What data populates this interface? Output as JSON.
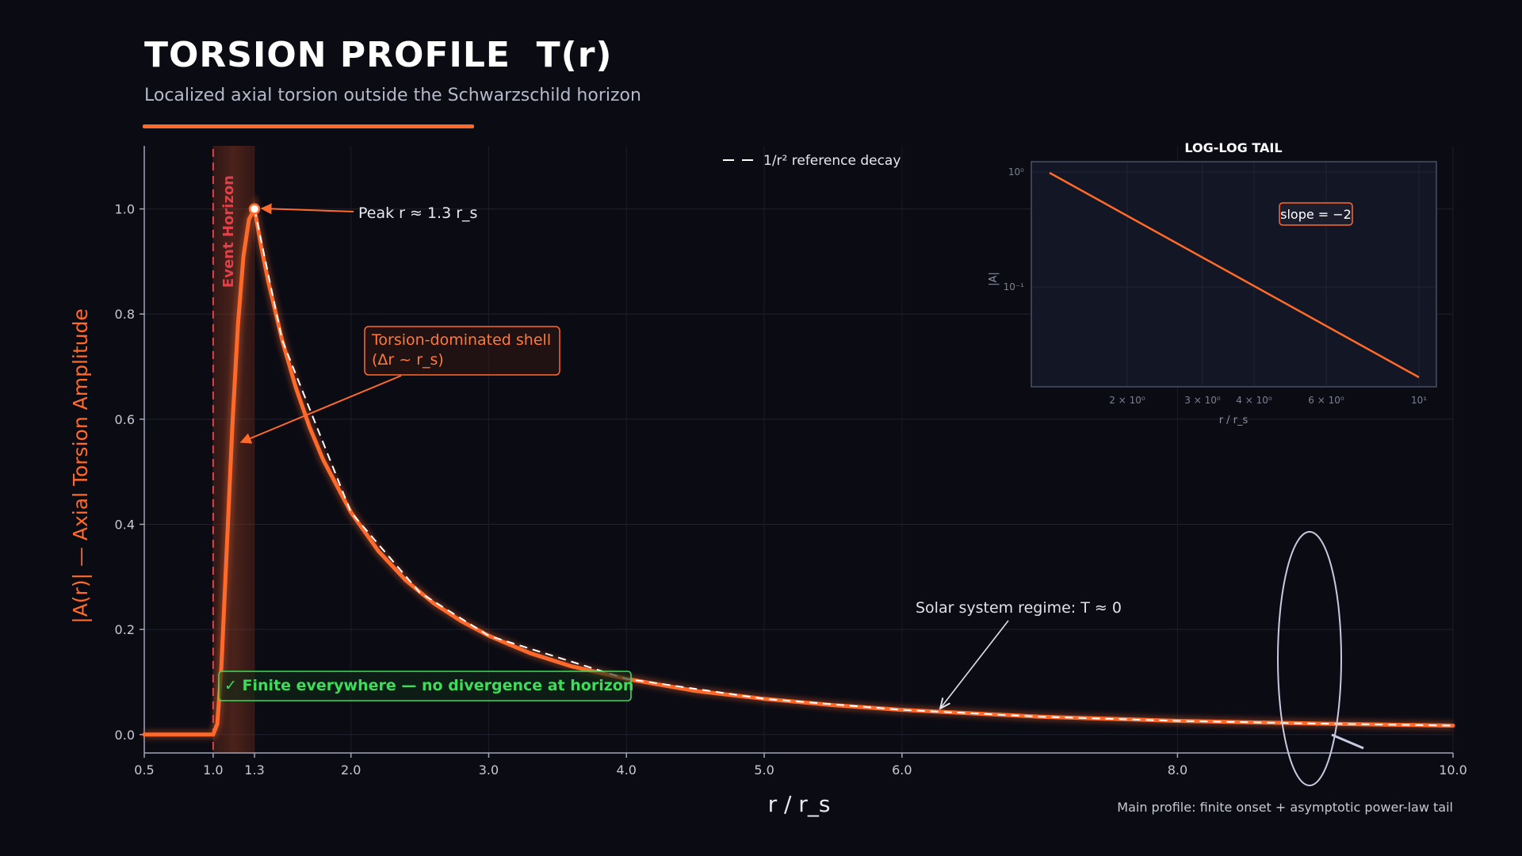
{
  "header": {
    "title": "TORSION PROFILE  T(r)",
    "subtitle": "Localized axial torsion outside the Schwarzschild horizon"
  },
  "colors": {
    "background": "#0b0b14",
    "accent": "#ff6a2a",
    "reference": "#ffffff",
    "horizon": "#e0404a",
    "finite_note": "#3ddc5a",
    "annotation": "#e0e2ea"
  },
  "chart_data": [
    {
      "type": "line",
      "title": "",
      "xlabel": "r / r_s",
      "ylabel": "|A(r)|  — Axial Torsion Amplitude",
      "xlim": [
        0.5,
        10.0
      ],
      "ylim": [
        -0.035,
        1.12
      ],
      "x_ticks": [
        0.5,
        1.0,
        1.3,
        2.0,
        3.0,
        4.0,
        5.0,
        6.0,
        8.0,
        10.0
      ],
      "x_tick_labels": [
        "0.5",
        "1.0",
        "1.3",
        "2.0",
        "3.0",
        "4.0",
        "5.0",
        "6.0",
        "8.0",
        "10.0"
      ],
      "y_ticks": [
        0.0,
        0.2,
        0.4,
        0.6,
        0.8,
        1.0
      ],
      "y_tick_labels": [
        "0.0",
        "0.2",
        "0.4",
        "0.6",
        "0.8",
        "1.0"
      ],
      "grid": true,
      "legend": "top-center",
      "series": [
        {
          "name": "",
          "style": "solid",
          "x": [
            0.5,
            0.9,
            1.0,
            1.03,
            1.06,
            1.1,
            1.14,
            1.18,
            1.22,
            1.26,
            1.3,
            1.35,
            1.4,
            1.5,
            1.6,
            1.7,
            1.8,
            2.0,
            2.2,
            2.4,
            2.6,
            2.8,
            3.0,
            3.3,
            3.6,
            4.0,
            4.5,
            5.0,
            5.5,
            6.0,
            7.0,
            8.0,
            9.0,
            10.0
          ],
          "y": [
            0.0,
            0.0,
            0.0,
            0.02,
            0.13,
            0.36,
            0.59,
            0.78,
            0.91,
            0.98,
            1.0,
            0.927,
            0.862,
            0.751,
            0.66,
            0.585,
            0.522,
            0.423,
            0.349,
            0.293,
            0.25,
            0.216,
            0.188,
            0.155,
            0.13,
            0.106,
            0.083,
            0.068,
            0.056,
            0.047,
            0.034,
            0.026,
            0.021,
            0.017
          ]
        },
        {
          "name": "1/r² reference decay",
          "style": "dashed",
          "x": [
            1.3,
            1.5,
            2.0,
            2.5,
            3.0,
            4.0,
            5.0,
            6.0,
            7.0,
            8.0,
            9.0,
            10.0
          ],
          "y": [
            1.0,
            0.751,
            0.423,
            0.27,
            0.188,
            0.106,
            0.068,
            0.047,
            0.034,
            0.026,
            0.021,
            0.017
          ]
        }
      ],
      "peak": {
        "x": 1.3,
        "y": 1.0,
        "label": "Peak  r ≈ 1.3 r_s"
      },
      "event_horizon": {
        "x": 1.0,
        "label": "Event Horizon",
        "shade_to": 1.3
      },
      "annotations": {
        "shell_line1": "Torsion-dominated shell",
        "shell_line2": "(Δr ~ r_s)",
        "solar": "Solar system regime:  T ≈ 0",
        "finite": "✓  Finite everywhere — no divergence at horizon",
        "caption": "Main profile: finite onset + asymptotic power-law tail"
      }
    },
    {
      "type": "line",
      "title": "LOG-LOG TAIL",
      "xlabel": "r / r_s",
      "ylabel": "|A|",
      "x_tick_labels": [
        "2 × 10⁰",
        "3 × 10⁰",
        "4 × 10⁰",
        "6 × 10⁰",
        "10¹"
      ],
      "y_tick_labels": [
        "10⁰",
        "10⁻¹"
      ],
      "grid": true,
      "series": [
        {
          "name": "",
          "x": [
            1.3,
            10.0
          ],
          "y": [
            1.0,
            0.017
          ]
        }
      ],
      "slope_label": "slope = −2"
    }
  ]
}
